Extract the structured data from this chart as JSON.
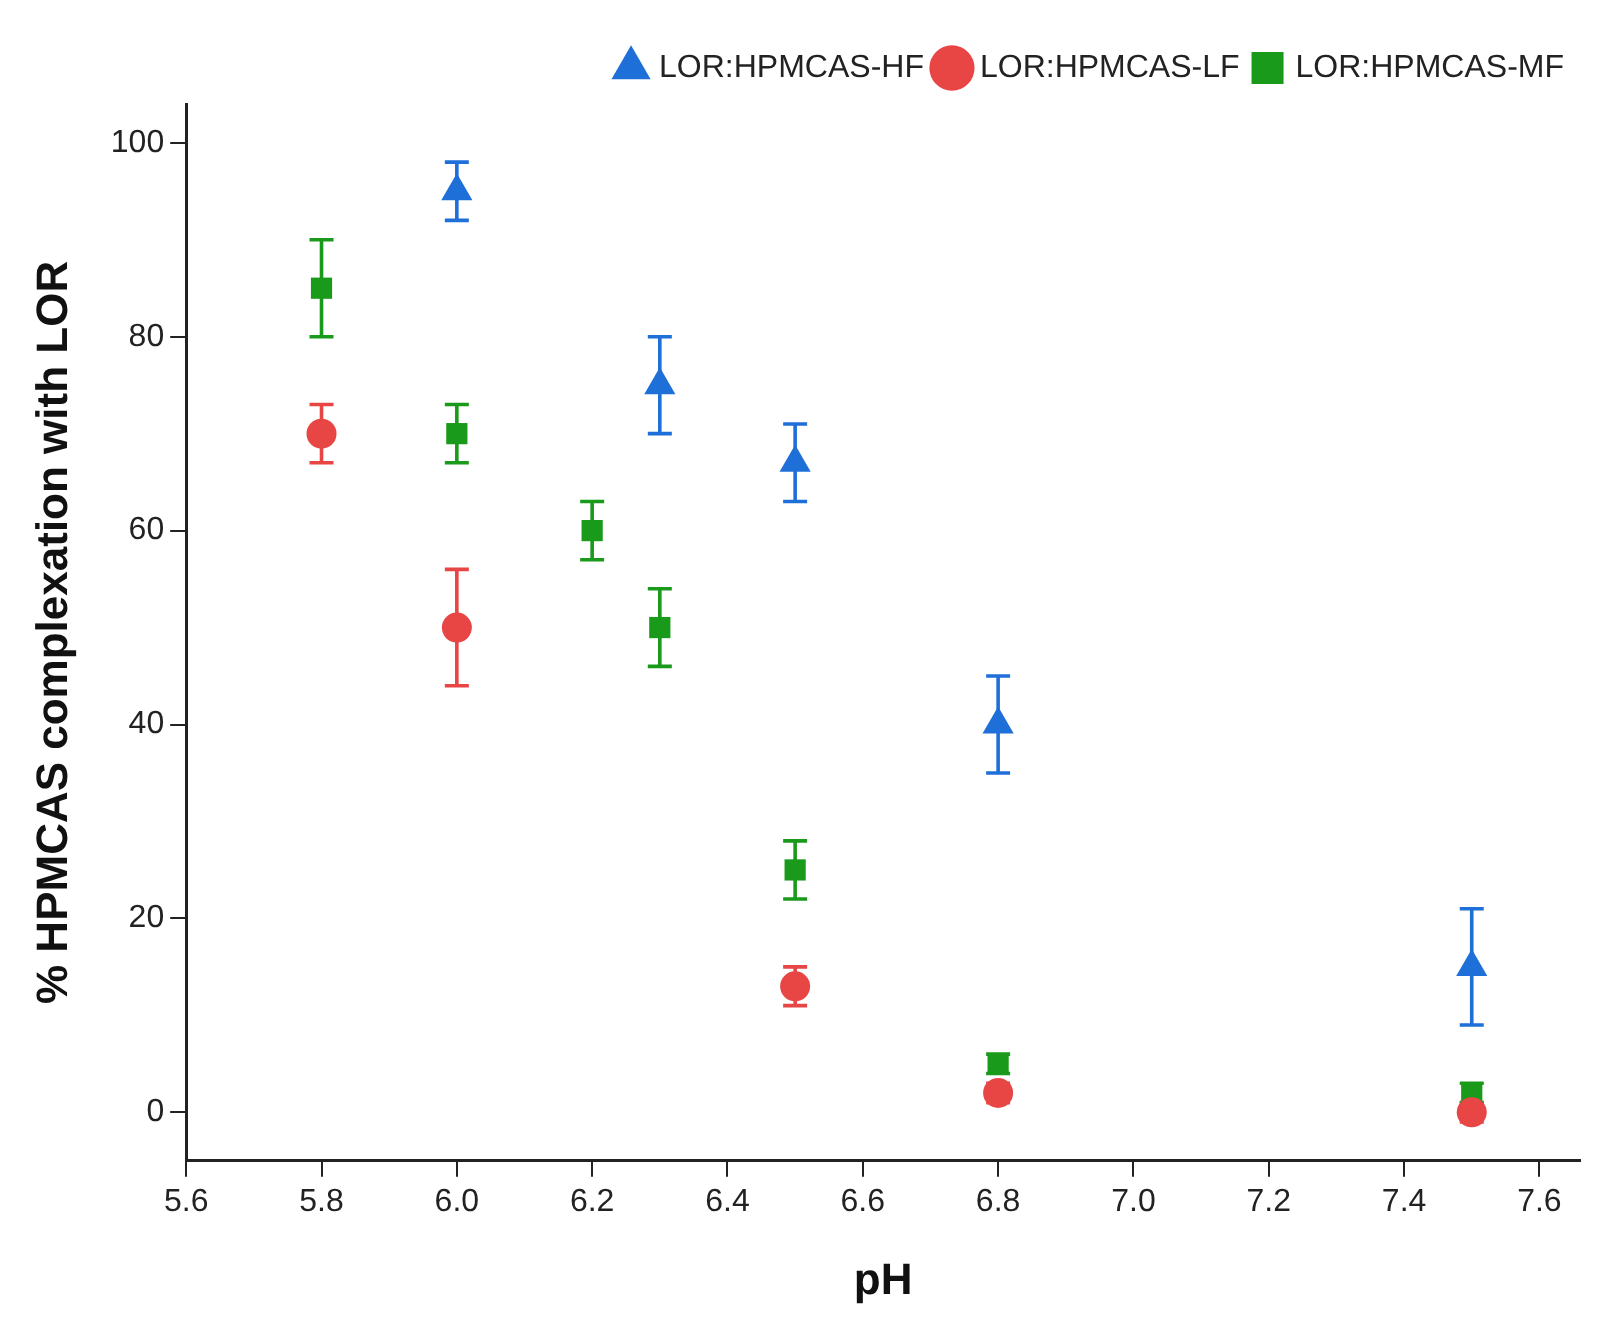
{
  "chart_data": {
    "type": "scatter",
    "xlabel": "pH",
    "ylabel": "% HPMCAS complexation with LOR",
    "xlim": [
      5.6,
      7.66
    ],
    "ylim": [
      -5,
      104
    ],
    "xticks": [
      {
        "value": 5.6,
        "label": "5.6"
      },
      {
        "value": 5.8,
        "label": "5.8"
      },
      {
        "value": 6.0,
        "label": "6.0"
      },
      {
        "value": 6.2,
        "label": "6.2"
      },
      {
        "value": 6.4,
        "label": "6.4"
      },
      {
        "value": 6.6,
        "label": "6.6"
      },
      {
        "value": 6.8,
        "label": "6.8"
      },
      {
        "value": 7.0,
        "label": "7.0"
      },
      {
        "value": 7.2,
        "label": "7.2"
      },
      {
        "value": 7.4,
        "label": "7.4"
      },
      {
        "value": 7.6,
        "label": "7.6"
      }
    ],
    "yticks": [
      0,
      20,
      40,
      60,
      80,
      100
    ],
    "grid": false,
    "legend": "top right",
    "series": [
      {
        "name": "LOR:HPMCAS-HF",
        "color": "#1f6fd8",
        "marker": "triangle",
        "x": [
          6.0,
          6.3,
          6.5,
          6.8,
          7.5
        ],
        "values": [
          95,
          75,
          67,
          40,
          15
        ],
        "errors": [
          3,
          5,
          4,
          5,
          6
        ]
      },
      {
        "name": "LOR:HPMCAS-LF",
        "color": "#e84545",
        "marker": "circle",
        "x": [
          5.8,
          6.0,
          6.5,
          6.8,
          7.5
        ],
        "values": [
          70,
          50,
          13,
          2,
          0
        ],
        "errors": [
          3,
          6,
          2,
          1,
          1
        ]
      },
      {
        "name": "LOR:HPMCAS-MF",
        "color": "#1a9a1a",
        "marker": "square",
        "x": [
          5.8,
          6.0,
          6.2,
          6.3,
          6.5,
          6.8,
          7.5
        ],
        "values": [
          85,
          70,
          60,
          50,
          25,
          5,
          2
        ],
        "errors": [
          5,
          3,
          3,
          4,
          3,
          1,
          1
        ]
      }
    ]
  }
}
